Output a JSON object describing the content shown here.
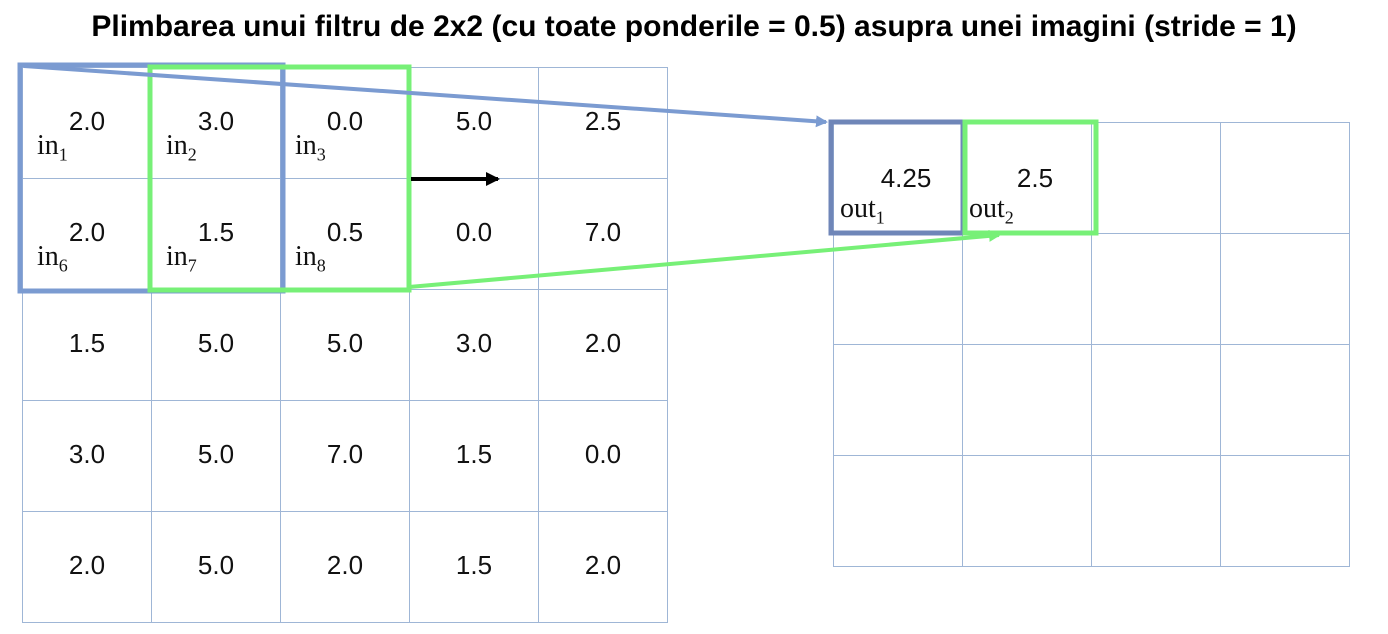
{
  "title": "Plimbarea unui filtru de 2x2 (cu toate ponderile = 0.5) asupra unei imagini (stride = 1)",
  "input_grid": {
    "rows": [
      [
        "2.0",
        "3.0",
        "0.0",
        "5.0",
        "2.5"
      ],
      [
        "2.0",
        "1.5",
        "0.5",
        "0.0",
        "7.0"
      ],
      [
        "1.5",
        "5.0",
        "5.0",
        "3.0",
        "2.0"
      ],
      [
        "3.0",
        "5.0",
        "7.0",
        "1.5",
        "0.0"
      ],
      [
        "2.0",
        "5.0",
        "2.0",
        "1.5",
        "2.0"
      ]
    ],
    "labels": {
      "0_0": {
        "base": "in",
        "sub": "1"
      },
      "0_1": {
        "base": "in",
        "sub": "2"
      },
      "0_2": {
        "base": "in",
        "sub": "3"
      },
      "1_0": {
        "base": "in",
        "sub": "6"
      },
      "1_1": {
        "base": "in",
        "sub": "7"
      },
      "1_2": {
        "base": "in",
        "sub": "8"
      }
    }
  },
  "output_grid": {
    "rows": [
      [
        "4.25",
        "2.5",
        "",
        ""
      ],
      [
        "",
        "",
        "",
        ""
      ],
      [
        "",
        "",
        "",
        ""
      ],
      [
        "",
        "",
        "",
        ""
      ]
    ],
    "labels": {
      "0_0": {
        "base": "out",
        "sub": "1"
      },
      "0_1": {
        "base": "out",
        "sub": "2"
      }
    }
  },
  "colors": {
    "grid_line": "#9fb6d6",
    "filter_blue": "#7b9bd1",
    "output_blue": "#6f86b8",
    "filter_green": "#77f077",
    "arrow_black": "#000000"
  }
}
